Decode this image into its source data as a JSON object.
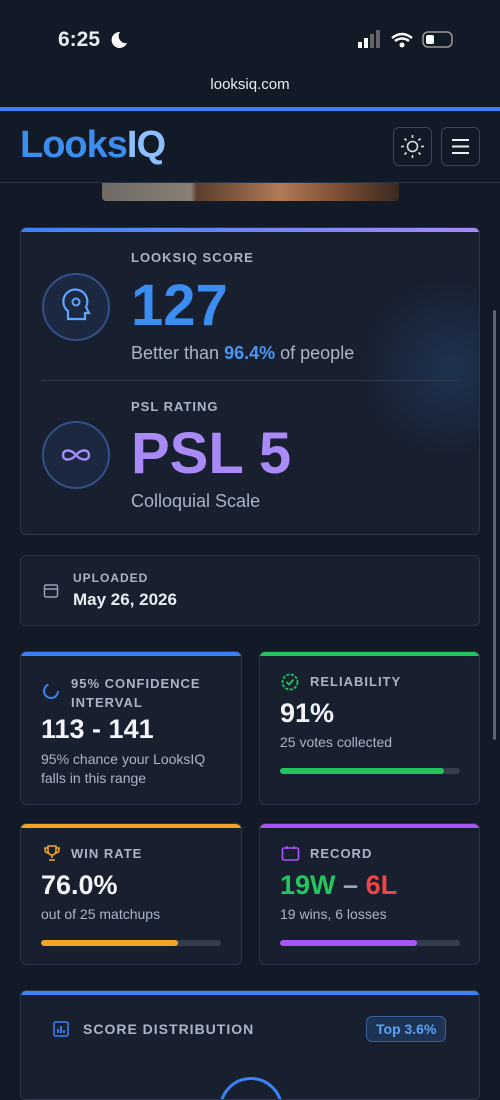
{
  "status_bar": {
    "time": "6:25"
  },
  "browser": {
    "url": "looksiq.com"
  },
  "header": {
    "logo_main": "Looks",
    "logo_accent": "IQ"
  },
  "score_card": {
    "label": "LOOKSIQ SCORE",
    "score": "127",
    "better_prefix": "Better than",
    "better_percent": "96.4%",
    "better_suffix": "of people",
    "psl_label": "PSL RATING",
    "psl_value": "PSL 5",
    "psl_caption": "Colloquial Scale"
  },
  "uploaded": {
    "label": "UPLOADED",
    "date": "May 26, 2026"
  },
  "confidence": {
    "label": "95% CONFIDENCE INTERVAL",
    "value": "113 - 141",
    "caption": "95% chance your LooksIQ falls in this range"
  },
  "reliability": {
    "label": "RELIABILITY",
    "value": "91%",
    "caption": "25 votes collected"
  },
  "win_rate": {
    "label": "WIN RATE",
    "value": "76.0%",
    "caption": "out of 25 matchups"
  },
  "record": {
    "label": "RECORD",
    "wins": "19W",
    "separator": "–",
    "losses": "6L",
    "caption": "19 wins, 6 losses"
  },
  "distribution": {
    "label": "SCORE DISTRIBUTION",
    "badge": "Top 3.6%"
  }
}
